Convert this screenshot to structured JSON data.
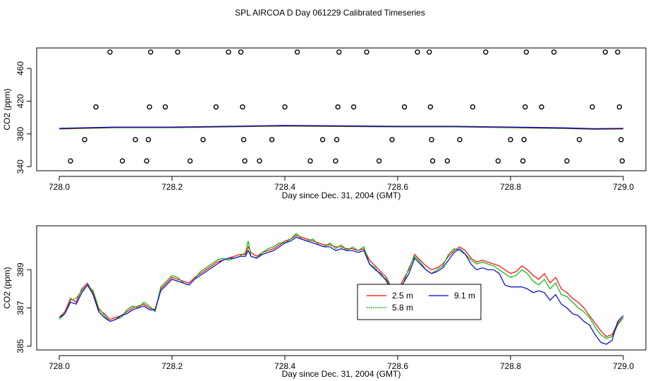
{
  "title": "SPL AIRCOA D  Day 061229  Calibrated Timeseries",
  "chart_data": [
    {
      "type": "scatter",
      "xlabel": "Day since Dec. 31, 2004 (GMT)",
      "ylabel": "CO2 (ppm)",
      "xlim": [
        727.96,
        729.04
      ],
      "ylim": [
        335,
        485
      ],
      "xticks": [
        "728.0",
        "728.2",
        "728.4",
        "728.6",
        "728.8",
        "729.0"
      ],
      "yticks": [
        "340",
        "380",
        "420",
        "460"
      ],
      "colors": {
        "points": "#000000",
        "red": "#ff0000",
        "green": "#00bb00",
        "blue": "#0000cc"
      },
      "points": [
        [
          728.02,
          347
        ],
        [
          728.045,
          373
        ],
        [
          728.065,
          413
        ],
        [
          728.09,
          480
        ],
        [
          728.112,
          347
        ],
        [
          728.135,
          373
        ],
        [
          728.155,
          347
        ],
        [
          728.158,
          373
        ],
        [
          728.16,
          413
        ],
        [
          728.162,
          480
        ],
        [
          728.188,
          413
        ],
        [
          728.21,
          480
        ],
        [
          728.232,
          347
        ],
        [
          728.255,
          373
        ],
        [
          728.278,
          413
        ],
        [
          728.3,
          480
        ],
        [
          728.322,
          480
        ],
        [
          728.325,
          413
        ],
        [
          728.327,
          373
        ],
        [
          728.329,
          347
        ],
        [
          728.355,
          347
        ],
        [
          728.377,
          373
        ],
        [
          728.4,
          413
        ],
        [
          728.422,
          480
        ],
        [
          728.445,
          347
        ],
        [
          728.467,
          373
        ],
        [
          728.49,
          347
        ],
        [
          728.492,
          373
        ],
        [
          728.494,
          413
        ],
        [
          728.496,
          480
        ],
        [
          728.522,
          413
        ],
        [
          728.545,
          480
        ],
        [
          728.567,
          347
        ],
        [
          728.59,
          373
        ],
        [
          728.612,
          413
        ],
        [
          728.635,
          480
        ],
        [
          728.656,
          480
        ],
        [
          728.658,
          413
        ],
        [
          728.66,
          373
        ],
        [
          728.662,
          347
        ],
        [
          728.688,
          347
        ],
        [
          728.71,
          373
        ],
        [
          728.733,
          413
        ],
        [
          728.756,
          480
        ],
        [
          728.778,
          347
        ],
        [
          728.8,
          373
        ],
        [
          728.822,
          347
        ],
        [
          728.824,
          373
        ],
        [
          728.826,
          413
        ],
        [
          728.828,
          480
        ],
        [
          728.855,
          413
        ],
        [
          728.877,
          480
        ],
        [
          728.9,
          347
        ],
        [
          728.922,
          373
        ],
        [
          728.945,
          413
        ],
        [
          728.968,
          480
        ],
        [
          728.99,
          480
        ],
        [
          728.993,
          413
        ],
        [
          728.996,
          373
        ],
        [
          728.998,
          347
        ]
      ],
      "lines": {
        "x": [
          728.0,
          728.1,
          728.2,
          728.3,
          728.4,
          728.5,
          728.6,
          728.7,
          728.8,
          728.9,
          728.95,
          729.0
        ],
        "y": [
          386.5,
          388,
          388,
          389,
          390,
          389.5,
          389,
          389,
          388,
          387,
          386,
          386.5
        ]
      }
    },
    {
      "type": "line",
      "xlabel": "Day since Dec. 31, 2004 (GMT)",
      "ylabel": "CO2 (ppm)",
      "xlim": [
        727.96,
        729.04
      ],
      "ylim": [
        384.8,
        391.3
      ],
      "xticks": [
        "728.0",
        "728.2",
        "728.4",
        "728.6",
        "728.8",
        "729.0"
      ],
      "yticks": [
        "385",
        "387",
        "389"
      ],
      "legend": {
        "position": "center-right",
        "entries": [
          "2.5 m",
          "5.8 m",
          "9.1 m"
        ]
      },
      "x": [
        728.0,
        728.01,
        728.02,
        728.03,
        728.04,
        728.05,
        728.06,
        728.07,
        728.08,
        728.09,
        728.1,
        728.11,
        728.12,
        728.13,
        728.14,
        728.15,
        728.16,
        728.17,
        728.18,
        728.19,
        728.2,
        728.21,
        728.22,
        728.23,
        728.24,
        728.25,
        728.26,
        728.27,
        728.28,
        728.29,
        728.3,
        728.31,
        728.32,
        728.33,
        728.335,
        728.34,
        728.35,
        728.36,
        728.37,
        728.38,
        728.39,
        728.4,
        728.41,
        728.42,
        728.43,
        728.44,
        728.45,
        728.46,
        728.47,
        728.48,
        728.49,
        728.5,
        728.51,
        728.52,
        728.53,
        728.54,
        728.55,
        728.56,
        728.57,
        728.58,
        728.59,
        728.6,
        728.61,
        728.62,
        728.63,
        728.64,
        728.65,
        728.66,
        728.67,
        728.68,
        728.69,
        728.7,
        728.71,
        728.72,
        728.73,
        728.74,
        728.75,
        728.76,
        728.77,
        728.78,
        728.79,
        728.8,
        728.81,
        728.82,
        728.83,
        728.84,
        728.85,
        728.86,
        728.87,
        728.88,
        728.89,
        728.9,
        728.91,
        728.92,
        728.93,
        728.94,
        728.95,
        728.96,
        728.97,
        728.98,
        728.99,
        729.0
      ],
      "series": [
        {
          "name": "2.5 m",
          "color": "red",
          "values": [
            386.5,
            386.8,
            387.5,
            387.3,
            388.0,
            388.3,
            387.8,
            386.9,
            386.7,
            386.4,
            386.5,
            386.6,
            386.8,
            387.0,
            387.1,
            387.2,
            387.0,
            386.9,
            388.0,
            388.3,
            388.6,
            388.5,
            388.4,
            388.3,
            388.6,
            388.8,
            389.0,
            389.2,
            389.4,
            389.5,
            389.6,
            389.7,
            389.8,
            389.8,
            390.2,
            389.9,
            389.7,
            389.9,
            390.0,
            390.1,
            390.3,
            390.5,
            390.6,
            390.8,
            390.7,
            390.6,
            390.5,
            390.4,
            390.3,
            390.3,
            390.2,
            390.2,
            390.1,
            390.1,
            390.0,
            390.1,
            389.5,
            389.2,
            388.9,
            388.6,
            388.0,
            387.9,
            388.5,
            389.0,
            389.8,
            389.5,
            389.2,
            389.0,
            389.1,
            389.3,
            389.7,
            390.0,
            390.2,
            390.0,
            389.6,
            389.4,
            389.5,
            389.4,
            389.3,
            389.2,
            389.0,
            388.8,
            388.9,
            389.2,
            389.0,
            388.7,
            388.5,
            388.8,
            388.3,
            388.6,
            388.0,
            387.8,
            387.5,
            387.3,
            387.0,
            386.6,
            386.2,
            385.8,
            385.5,
            385.6,
            386.2,
            386.5
          ]
        },
        {
          "name": "5.8 m",
          "color": "green",
          "values": [
            386.4,
            386.7,
            387.4,
            387.5,
            387.9,
            388.2,
            387.9,
            387.0,
            386.6,
            386.3,
            386.4,
            386.5,
            386.9,
            387.1,
            387.0,
            387.3,
            387.1,
            386.8,
            388.1,
            388.4,
            388.7,
            388.6,
            388.3,
            388.2,
            388.5,
            388.9,
            389.1,
            389.3,
            389.5,
            389.6,
            389.5,
            389.6,
            389.7,
            389.9,
            390.5,
            389.7,
            389.6,
            389.9,
            390.1,
            390.2,
            390.4,
            390.4,
            390.6,
            390.9,
            390.6,
            390.5,
            390.6,
            390.3,
            390.2,
            390.4,
            390.1,
            390.3,
            390.0,
            390.2,
            390.0,
            390.2,
            389.3,
            389.1,
            388.7,
            388.5,
            387.9,
            388.1,
            388.3,
            389.1,
            389.7,
            389.4,
            389.0,
            388.8,
            389.0,
            389.2,
            389.8,
            390.1,
            390.0,
            389.8,
            389.5,
            389.3,
            389.4,
            389.3,
            389.2,
            389.0,
            388.8,
            388.6,
            388.7,
            389.0,
            388.8,
            388.4,
            388.2,
            388.5,
            388.0,
            388.3,
            387.7,
            387.6,
            387.3,
            387.0,
            386.8,
            386.5,
            386.0,
            385.6,
            385.4,
            385.5,
            386.1,
            386.5
          ]
        },
        {
          "name": "9.1 m",
          "color": "blue",
          "values": [
            386.5,
            386.7,
            387.3,
            387.2,
            387.8,
            388.2,
            387.7,
            386.8,
            386.5,
            386.3,
            386.4,
            386.6,
            386.7,
            386.9,
            387.0,
            387.1,
            386.9,
            386.9,
            387.9,
            388.2,
            388.5,
            388.4,
            388.3,
            388.2,
            388.5,
            388.7,
            388.9,
            389.1,
            389.3,
            389.5,
            389.6,
            389.6,
            389.7,
            389.7,
            390.0,
            389.7,
            389.6,
            389.8,
            389.9,
            390.0,
            390.2,
            390.4,
            390.5,
            390.7,
            390.6,
            390.5,
            390.4,
            390.3,
            390.2,
            390.2,
            390.0,
            390.1,
            390.0,
            390.0,
            389.9,
            390.0,
            389.3,
            389.0,
            388.8,
            388.4,
            387.8,
            387.8,
            388.3,
            388.8,
            389.6,
            389.3,
            389.0,
            388.8,
            388.9,
            389.1,
            389.5,
            389.9,
            390.1,
            389.8,
            389.3,
            389.0,
            389.1,
            389.0,
            389.0,
            388.8,
            388.2,
            388.1,
            388.1,
            388.1,
            388.0,
            387.8,
            387.9,
            387.8,
            387.4,
            387.7,
            387.2,
            387.0,
            386.7,
            386.6,
            386.3,
            386.1,
            385.6,
            385.2,
            385.1,
            385.3,
            386.3,
            386.6
          ]
        }
      ]
    }
  ]
}
